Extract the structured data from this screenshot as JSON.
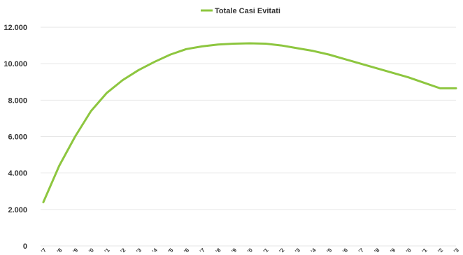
{
  "chart_data": {
    "type": "line",
    "title": "",
    "xlabel": "",
    "ylabel": "",
    "ylim": [
      0,
      12000
    ],
    "yticks": [
      0,
      2000,
      4000,
      6000,
      8000,
      10000,
      12000
    ],
    "ytick_labels": [
      "0",
      "2.000",
      "4.000",
      "6.000",
      "8.000",
      "10.000",
      "12.000"
    ],
    "grid": true,
    "legend_position": "top-center",
    "x": [
      1,
      2,
      3,
      4,
      5,
      6,
      7,
      8,
      9,
      10,
      11,
      12,
      13,
      14,
      15,
      16,
      17,
      18,
      19,
      20,
      21,
      22,
      23,
      24,
      25,
      26,
      27
    ],
    "xtick_labels": [
      "'7",
      "'8",
      "'9",
      "'0",
      "'1",
      "'2",
      "'3",
      "'4",
      "'5",
      "'6",
      "'7",
      "'8",
      "'9",
      "'0",
      "'1",
      "'2",
      "'3",
      "'4",
      "'5",
      "'6",
      "'7",
      "'8",
      "'9",
      "'0",
      "'1",
      "'2",
      "'3"
    ],
    "series": [
      {
        "name": "Totale Casi Evitati",
        "color": "#8dc63f",
        "values": [
          2400,
          4400,
          6000,
          7400,
          8400,
          9100,
          9650,
          10100,
          10500,
          10800,
          10950,
          11050,
          11100,
          11120,
          11100,
          11000,
          10850,
          10700,
          10500,
          10250,
          10000,
          9750,
          9500,
          9250,
          8950,
          8650,
          8650
        ]
      }
    ]
  }
}
